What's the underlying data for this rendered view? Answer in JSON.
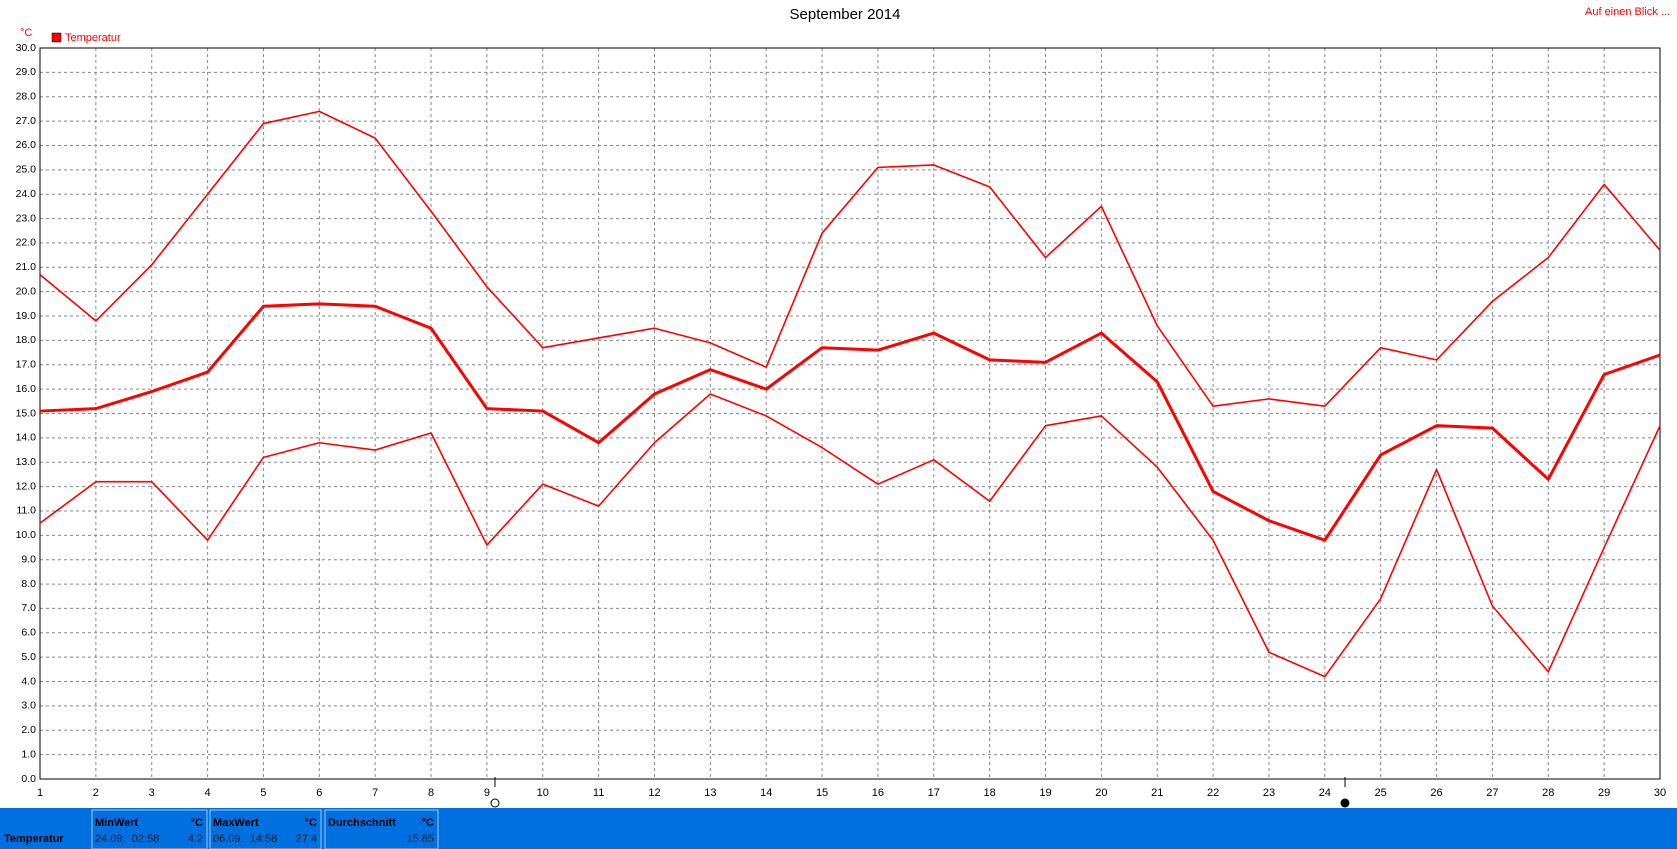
{
  "chart_data": {
    "type": "line",
    "title": "September 2014",
    "y_unit": "°C",
    "link": "Auf einen Blick ...",
    "legend": "Temperatur",
    "x": [
      1,
      2,
      3,
      4,
      5,
      6,
      7,
      8,
      9,
      10,
      11,
      12,
      13,
      14,
      15,
      16,
      17,
      18,
      19,
      20,
      21,
      22,
      23,
      24,
      25,
      26,
      27,
      28,
      29,
      30
    ],
    "series": [
      {
        "name": "Temperatur",
        "color": "#ff0000",
        "values": [
          15.1,
          15.2,
          15.9,
          16.7,
          19.4,
          19.5,
          19.4,
          18.5,
          15.2,
          15.1,
          13.8,
          15.8,
          16.8,
          16.0,
          17.7,
          17.6,
          18.3,
          17.2,
          17.1,
          18.3,
          16.3,
          11.8,
          10.6,
          9.8,
          13.3,
          14.5,
          14.4,
          12.3,
          16.6,
          17.4
        ]
      },
      {
        "color": "#ff0000",
        "values": [
          20.7,
          18.8,
          21.1,
          24.0,
          26.9,
          27.4,
          26.3,
          23.3,
          20.2,
          17.7,
          18.1,
          18.5,
          17.9,
          16.9,
          22.4,
          25.1,
          25.2,
          24.3,
          21.4,
          23.5,
          18.6,
          15.3,
          15.6,
          15.3,
          17.7,
          17.2,
          19.6,
          21.4,
          24.4,
          21.7
        ]
      },
      {
        "color": "#ff0000",
        "values": [
          10.5,
          12.2,
          12.2,
          9.8,
          13.2,
          13.8,
          13.5,
          14.2,
          9.6,
          12.1,
          11.2,
          13.8,
          15.8,
          14.9,
          13.6,
          12.1,
          13.1,
          11.4,
          14.5,
          14.9,
          12.8,
          9.8,
          5.2,
          4.2,
          7.4,
          12.7,
          7.1,
          4.4,
          9.5,
          14.5
        ]
      }
    ],
    "xlim": [
      1,
      30
    ],
    "xticks": [
      1,
      2,
      3,
      4,
      5,
      6,
      7,
      8,
      9,
      10,
      11,
      12,
      13,
      14,
      15,
      16,
      17,
      18,
      19,
      20,
      21,
      22,
      23,
      24,
      25,
      26,
      27,
      28,
      29,
      30
    ],
    "ylim": [
      0,
      30
    ],
    "yticks": [
      {
        "value": 0,
        "label": "0.0"
      },
      {
        "value": 1,
        "label": "1.0"
      },
      {
        "value": 2,
        "label": "2.0"
      },
      {
        "value": 3,
        "label": "3.0"
      },
      {
        "value": 4,
        "label": "4.0"
      },
      {
        "value": 5,
        "label": "5.0"
      },
      {
        "value": 6,
        "label": "6.0"
      },
      {
        "value": 7,
        "label": "7.0"
      },
      {
        "value": 8,
        "label": "8.0"
      },
      {
        "value": 9,
        "label": "9.0"
      },
      {
        "value": 10,
        "label": "10.0"
      },
      {
        "value": 11,
        "label": "11.0"
      },
      {
        "value": 12,
        "label": "12.0"
      },
      {
        "value": 13,
        "label": "13.0"
      },
      {
        "value": 14,
        "label": "14.0"
      },
      {
        "value": 15,
        "label": "15.0"
      },
      {
        "value": 16,
        "label": "16.0"
      },
      {
        "value": 17,
        "label": "17.0"
      },
      {
        "value": 18,
        "label": "18.0"
      },
      {
        "value": 19,
        "label": "19.0"
      },
      {
        "value": 20,
        "label": "20.0"
      },
      {
        "value": 21,
        "label": "21.0"
      },
      {
        "value": 22,
        "label": "22.0"
      },
      {
        "value": 23,
        "label": "23.0"
      },
      {
        "value": 24,
        "label": "24.0"
      },
      {
        "value": 25,
        "label": "25.0"
      },
      {
        "value": 26,
        "label": "26.0"
      },
      {
        "value": 27,
        "label": "27.0"
      },
      {
        "value": 28,
        "label": "28.0"
      },
      {
        "value": 29,
        "label": "29.0"
      },
      {
        "value": 30,
        "label": "30.0"
      }
    ],
    "grid": true
  },
  "footer": {
    "label": "Temperatur",
    "cells": [
      {
        "title": "MinWert",
        "unit": "°C",
        "time": "24.09.  02:58",
        "value": 4.2
      },
      {
        "title": "MaxWert",
        "unit": "°C",
        "time": "06.09.  14:58",
        "value": 27.4
      },
      {
        "title": "Durchschnitt",
        "unit": "°C",
        "value": 15.85
      }
    ]
  }
}
